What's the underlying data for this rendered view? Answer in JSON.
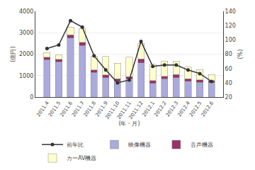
{
  "chart_data": {
    "type": "bar",
    "stacked": true,
    "categories": [
      "2011.4",
      "2011.5",
      "2011.6",
      "2011.7",
      "2011.8",
      "2011.9",
      "2011.10",
      "2011.11",
      "2011.12",
      "2012.1",
      "2012.2",
      "2012.3",
      "2012.4",
      "2012.5",
      "2012.6"
    ],
    "series": [
      {
        "name": "映像機器",
        "type": "bar",
        "color": "#aaaadd",
        "values": [
          1750,
          1650,
          2750,
          2400,
          1150,
          900,
          750,
          850,
          1600,
          650,
          850,
          900,
          750,
          700,
          680
        ]
      },
      {
        "name": "音声機器",
        "type": "bar",
        "color": "#993366",
        "values": [
          120,
          110,
          160,
          150,
          120,
          140,
          110,
          110,
          180,
          130,
          130,
          150,
          110,
          100,
          100
        ]
      },
      {
        "name": "カーAV機器",
        "type": "bar",
        "color": "#ffffcc",
        "values": [
          200,
          200,
          350,
          650,
          650,
          850,
          720,
          900,
          720,
          750,
          700,
          630,
          550,
          480,
          280
        ]
      },
      {
        "name": "前年比",
        "type": "line",
        "axis": "y2",
        "color": "#333333",
        "marker": "circle",
        "values": [
          88,
          93,
          127,
          118,
          78,
          58,
          40,
          44,
          98,
          63,
          65,
          65,
          58,
          53,
          42
        ]
      }
    ],
    "xlabel": "(年・月)",
    "ylabel": "(億円)",
    "y2label": "(%)",
    "ylim": [
      0,
      4000
    ],
    "yticks": [
      0,
      1000,
      2000,
      3000,
      4000
    ],
    "y2lim": [
      20,
      140
    ],
    "y2ticks": [
      20,
      40,
      60,
      80,
      100,
      120,
      140
    ],
    "grid": true,
    "legend": "bottom"
  }
}
